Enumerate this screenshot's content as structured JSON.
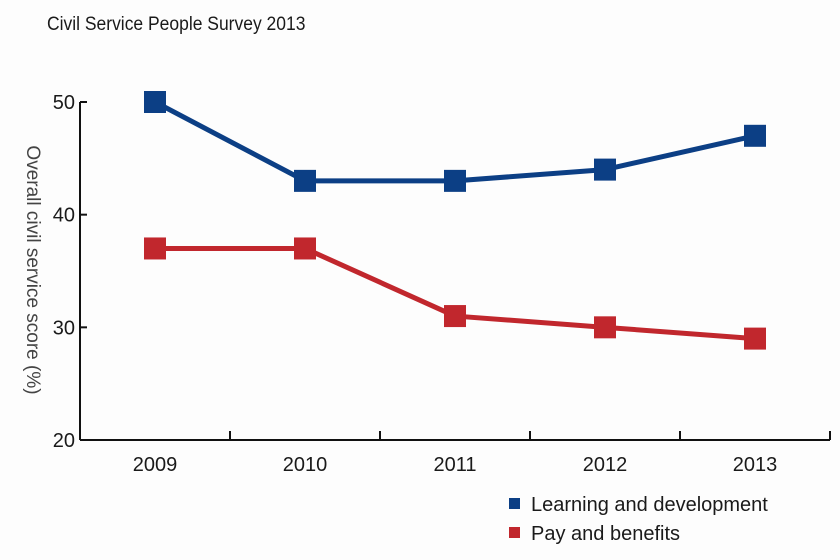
{
  "chart_data": {
    "type": "line",
    "title": "Civil Service People Survey 2013",
    "xlabel": "",
    "ylabel": "Overall civil service score (%)",
    "categories": [
      "2009",
      "2010",
      "2011",
      "2012",
      "2013"
    ],
    "ylim": [
      20,
      50
    ],
    "yticks": [
      20,
      30,
      40,
      50
    ],
    "grid": false,
    "legend_position": "bottom-right",
    "series": [
      {
        "name": "Learning and development",
        "color": "#0c3f85",
        "values": [
          50,
          43,
          43,
          44,
          47
        ]
      },
      {
        "name": "Pay and benefits",
        "color": "#c1272d",
        "values": [
          37,
          37,
          31,
          30,
          29
        ]
      }
    ]
  }
}
